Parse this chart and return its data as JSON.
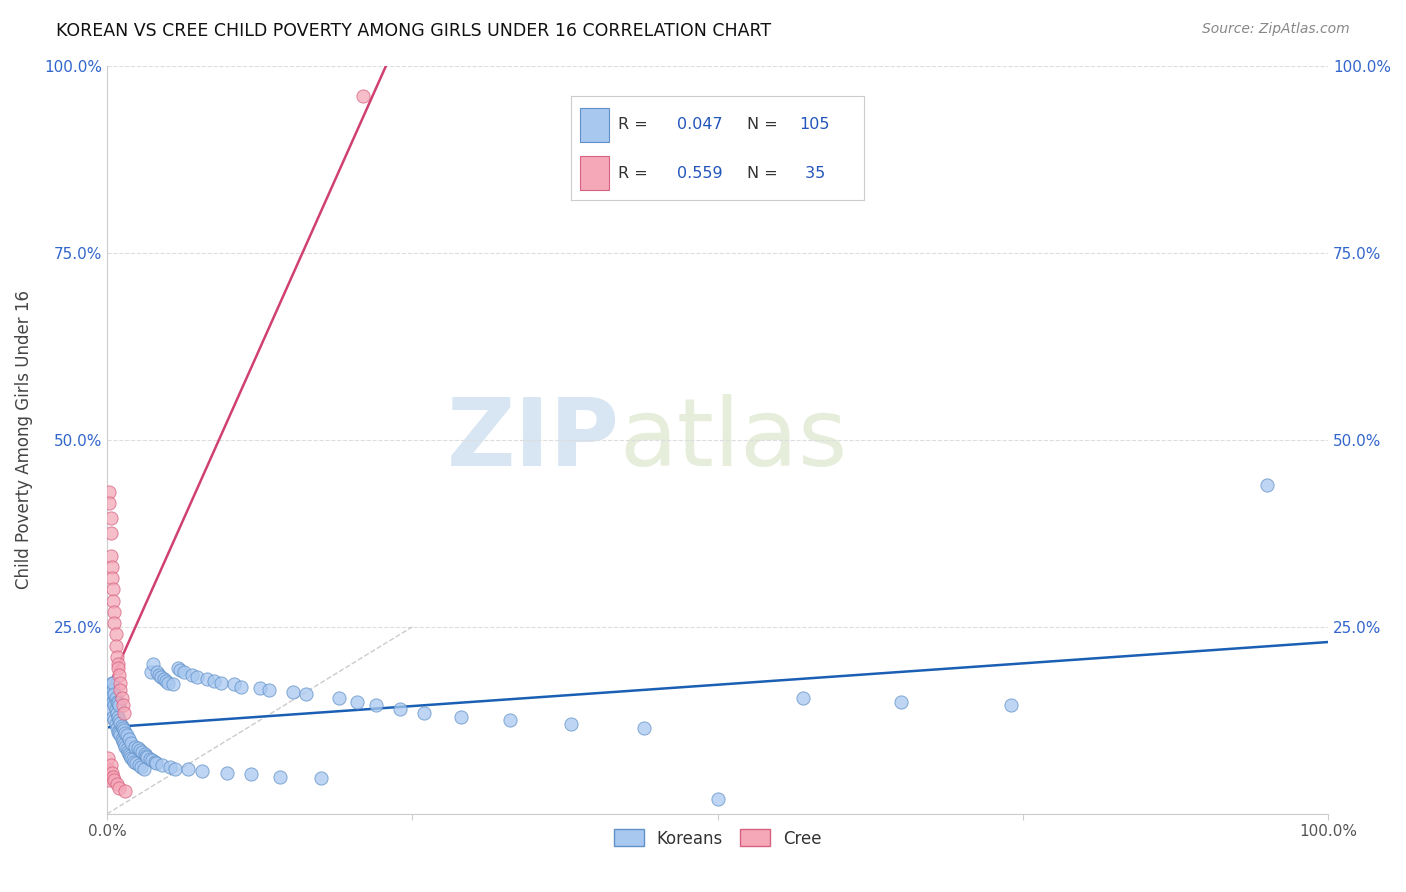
{
  "title": "KOREAN VS CREE CHILD POVERTY AMONG GIRLS UNDER 16 CORRELATION CHART",
  "source": "Source: ZipAtlas.com",
  "ylabel": "Child Poverty Among Girls Under 16",
  "xlim": [
    0,
    1
  ],
  "ylim": [
    0,
    1
  ],
  "korean_color": "#a8c8f0",
  "cree_color": "#f4a8b8",
  "korean_edge": "#6090c8",
  "cree_edge": "#d86080",
  "trend_korean_color": "#1a5fb4",
  "trend_cree_color": "#d04070",
  "diag_color": "#cccccc",
  "R_korean": 0.047,
  "N_korean": 105,
  "R_cree": 0.559,
  "N_cree": 35,
  "watermark_zip": "ZIP",
  "watermark_atlas": "atlas",
  "background": "#ffffff",
  "grid_color": "#dddddd",
  "korean_x": [
    0.003,
    0.003,
    0.004,
    0.004,
    0.004,
    0.005,
    0.005,
    0.005,
    0.005,
    0.006,
    0.006,
    0.006,
    0.007,
    0.007,
    0.007,
    0.008,
    0.008,
    0.008,
    0.009,
    0.009,
    0.009,
    0.01,
    0.01,
    0.01,
    0.011,
    0.011,
    0.012,
    0.012,
    0.013,
    0.013,
    0.014,
    0.014,
    0.015,
    0.015,
    0.016,
    0.016,
    0.017,
    0.018,
    0.018,
    0.019,
    0.02,
    0.02,
    0.021,
    0.022,
    0.023,
    0.024,
    0.025,
    0.026,
    0.027,
    0.028,
    0.029,
    0.03,
    0.031,
    0.032,
    0.033,
    0.035,
    0.036,
    0.037,
    0.038,
    0.039,
    0.04,
    0.041,
    0.043,
    0.044,
    0.045,
    0.047,
    0.048,
    0.05,
    0.052,
    0.054,
    0.056,
    0.058,
    0.06,
    0.063,
    0.066,
    0.07,
    0.074,
    0.078,
    0.082,
    0.088,
    0.093,
    0.098,
    0.104,
    0.11,
    0.118,
    0.125,
    0.133,
    0.142,
    0.152,
    0.163,
    0.175,
    0.19,
    0.205,
    0.22,
    0.24,
    0.26,
    0.29,
    0.33,
    0.38,
    0.44,
    0.5,
    0.57,
    0.65,
    0.74,
    0.95
  ],
  "korean_y": [
    0.155,
    0.165,
    0.14,
    0.16,
    0.175,
    0.13,
    0.15,
    0.165,
    0.175,
    0.125,
    0.145,
    0.16,
    0.12,
    0.14,
    0.155,
    0.115,
    0.135,
    0.15,
    0.11,
    0.13,
    0.148,
    0.108,
    0.125,
    0.145,
    0.105,
    0.122,
    0.1,
    0.118,
    0.097,
    0.115,
    0.094,
    0.112,
    0.09,
    0.108,
    0.087,
    0.105,
    0.083,
    0.08,
    0.1,
    0.078,
    0.075,
    0.095,
    0.073,
    0.07,
    0.09,
    0.068,
    0.088,
    0.065,
    0.085,
    0.063,
    0.083,
    0.06,
    0.08,
    0.078,
    0.076,
    0.074,
    0.19,
    0.072,
    0.2,
    0.07,
    0.068,
    0.19,
    0.185,
    0.183,
    0.065,
    0.18,
    0.178,
    0.175,
    0.063,
    0.173,
    0.06,
    0.195,
    0.193,
    0.19,
    0.06,
    0.185,
    0.183,
    0.058,
    0.18,
    0.178,
    0.175,
    0.055,
    0.173,
    0.17,
    0.053,
    0.168,
    0.165,
    0.05,
    0.163,
    0.16,
    0.048,
    0.155,
    0.15,
    0.145,
    0.14,
    0.135,
    0.13,
    0.125,
    0.12,
    0.115,
    0.02,
    0.155,
    0.15,
    0.145,
    0.44
  ],
  "cree_x": [
    0.001,
    0.001,
    0.001,
    0.002,
    0.002,
    0.002,
    0.002,
    0.003,
    0.003,
    0.003,
    0.003,
    0.004,
    0.004,
    0.004,
    0.005,
    0.005,
    0.005,
    0.006,
    0.006,
    0.006,
    0.007,
    0.007,
    0.008,
    0.008,
    0.009,
    0.009,
    0.01,
    0.01,
    0.011,
    0.011,
    0.012,
    0.013,
    0.014,
    0.015,
    0.21
  ],
  "cree_y": [
    0.06,
    0.05,
    0.075,
    0.055,
    0.045,
    0.43,
    0.415,
    0.375,
    0.395,
    0.065,
    0.345,
    0.33,
    0.315,
    0.055,
    0.3,
    0.285,
    0.05,
    0.27,
    0.255,
    0.045,
    0.24,
    0.225,
    0.21,
    0.04,
    0.2,
    0.195,
    0.185,
    0.035,
    0.175,
    0.165,
    0.155,
    0.145,
    0.135,
    0.03,
    0.96
  ]
}
